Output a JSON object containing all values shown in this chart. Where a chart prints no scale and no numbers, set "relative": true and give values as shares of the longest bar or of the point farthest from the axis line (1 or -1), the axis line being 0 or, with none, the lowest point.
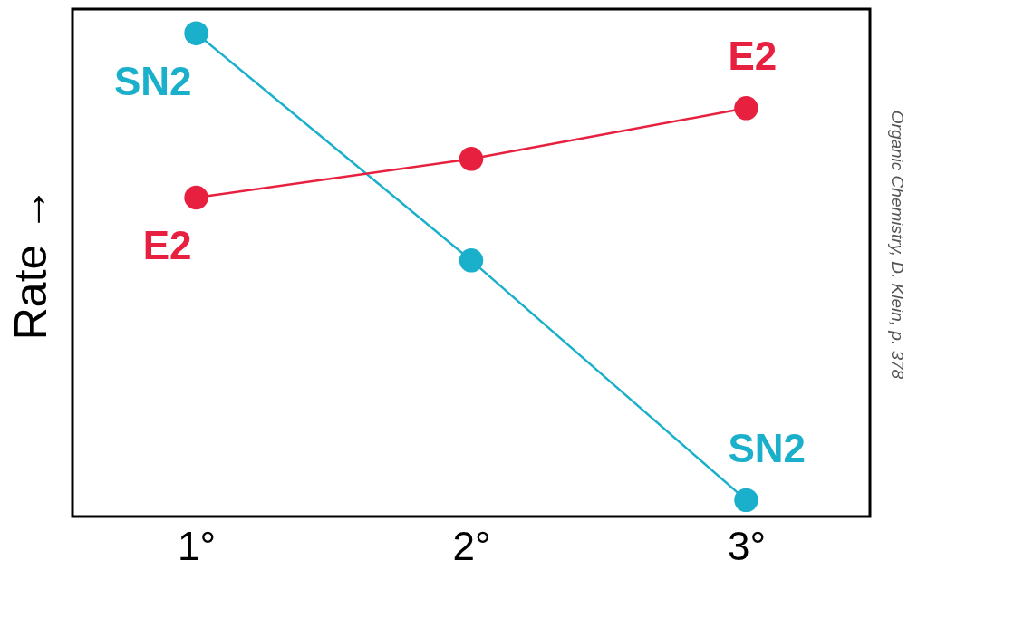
{
  "chart_data": {
    "type": "line",
    "relative": true,
    "ylabel": "Rate →",
    "categories": [
      "1°",
      "2°",
      "3°"
    ],
    "series": [
      {
        "name": "SN2",
        "color": "#1ab0cc",
        "values": [
          1,
          0.53,
          0.034
        ]
      },
      {
        "name": "E2",
        "color": "#e8203f",
        "values": [
          0.66,
          0.74,
          0.845
        ]
      }
    ],
    "marker": "circle",
    "grid": false,
    "legend": false,
    "annotations": [
      "Organic Chemistry, D. Klein, p. 378"
    ]
  }
}
